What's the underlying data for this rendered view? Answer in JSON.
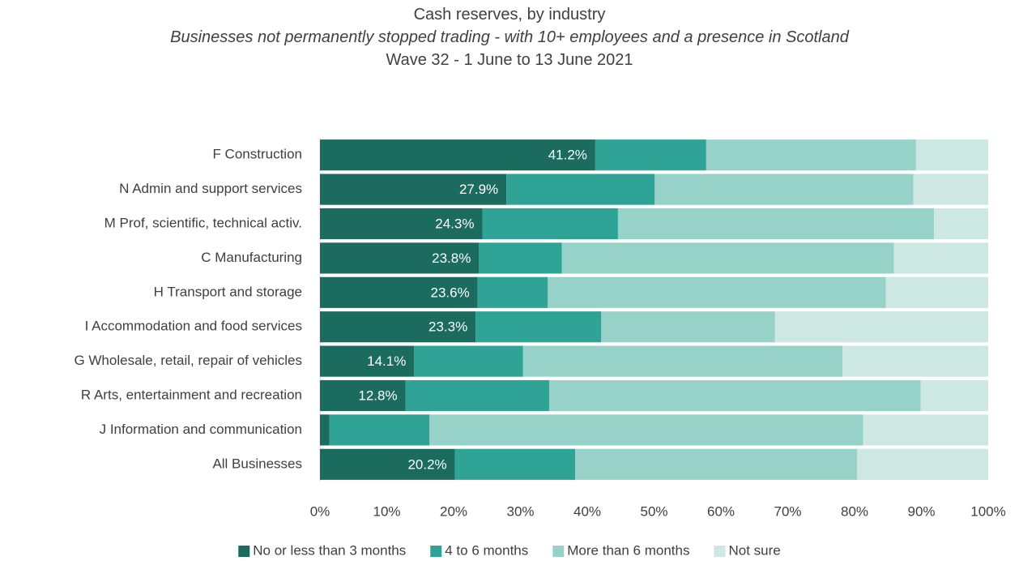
{
  "chart_data": {
    "type": "stacked-bar-horizontal",
    "title": "Cash reserves, by industry",
    "subtitle": "Businesses not permanently stopped trading -  with 10+ employees and a presence in Scotland",
    "subtitle2": "Wave 32 - 1 June to 13 June 2021",
    "categories": [
      "F Construction",
      "N Admin and support services",
      "M Prof, scientific, technical activ.",
      "C Manufacturing",
      "H Transport and storage",
      "I Accommodation and food services",
      "G Wholesale, retail, repair of vehicles",
      "R Arts, entertainment and recreation",
      "J Information and communication",
      "All Businesses"
    ],
    "series": [
      {
        "name": "No or less than 3 months",
        "color": "#1b6b5f",
        "values": [
          41.2,
          27.9,
          24.3,
          23.8,
          23.6,
          23.3,
          14.1,
          12.8,
          1.4,
          20.2
        ],
        "value_labels": [
          "41.2%",
          "27.9%",
          "24.3%",
          "23.8%",
          "23.6%",
          "23.3%",
          "14.1%",
          "12.8%",
          "1.4%",
          "20.2%"
        ]
      },
      {
        "name": "4 to 6 months",
        "color": "#2ea396",
        "values": [
          16.6,
          22.2,
          20.3,
          12.4,
          10.5,
          18.8,
          16.3,
          21.5,
          15.0,
          18.0
        ]
      },
      {
        "name": "More than 6 months",
        "color": "#97d2c9",
        "values": [
          31.4,
          38.7,
          47.3,
          49.7,
          50.6,
          26.0,
          47.8,
          55.6,
          64.9,
          42.2
        ]
      },
      {
        "name": "Not sure",
        "color": "#cde8e3",
        "values": [
          10.8,
          11.2,
          8.1,
          14.1,
          15.3,
          31.9,
          21.8,
          10.1,
          18.7,
          19.6
        ]
      }
    ],
    "xlim": [
      0,
      100
    ],
    "xticks": [
      {
        "value": 0,
        "label": "0%"
      },
      {
        "value": 10,
        "label": "10%"
      },
      {
        "value": 20,
        "label": "20%"
      },
      {
        "value": 30,
        "label": "30%"
      },
      {
        "value": 40,
        "label": "40%"
      },
      {
        "value": 50,
        "label": "50%"
      },
      {
        "value": 60,
        "label": "60%"
      },
      {
        "value": 70,
        "label": "70%"
      },
      {
        "value": 80,
        "label": "80%"
      },
      {
        "value": 90,
        "label": "90%"
      },
      {
        "value": 100,
        "label": "100%"
      }
    ],
    "legend": "bottom"
  }
}
